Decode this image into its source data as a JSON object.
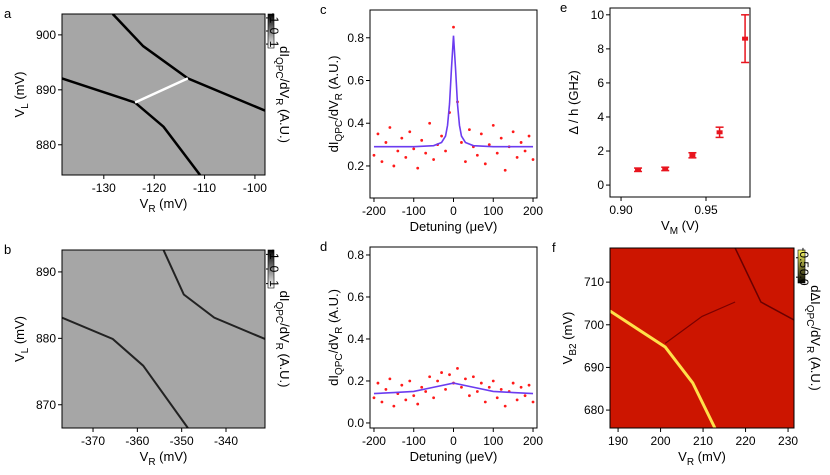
{
  "chart_data": [
    {
      "type": "heatmap",
      "panel_label": "a",
      "background": "#a6a6a6",
      "xlabel": [
        "V",
        "R",
        " (mV)"
      ],
      "ylabel": [
        "V",
        "L",
        " (mV)"
      ],
      "xlim": [
        -138.3,
        -98.0
      ],
      "xticks": [
        -130,
        -120,
        -110,
        -100
      ],
      "ylim": [
        874.5,
        903.8
      ],
      "yticks": [
        880,
        890,
        900
      ],
      "cbar_lim": [
        -1.3,
        1.3
      ],
      "cbar_ticks": [
        -1,
        0,
        1
      ],
      "cbar_colors": [
        "#000000",
        "#ffffff"
      ],
      "cbar_label": [
        "dI",
        "QPC",
        "/dV",
        "R",
        " (A.U.)"
      ]
    },
    {
      "type": "scatter",
      "panel_label": "c",
      "xlabel": [
        "Detuning (μeV)"
      ],
      "ylabel": [
        "dI",
        "QPC",
        "/dV",
        "R",
        " (A.U.)"
      ],
      "xlim": [
        -210,
        210
      ],
      "xticks": [
        -200,
        -100,
        0,
        100,
        200
      ],
      "ylim": [
        0.05,
        0.93
      ],
      "yticks": [
        0.2,
        0.4,
        0.6,
        0.8
      ],
      "series": [
        {
          "style": "markers",
          "color": "#ff1a1a",
          "x": [
            -200,
            -190,
            -180,
            -170,
            -160,
            -150,
            -140,
            -130,
            -120,
            -110,
            -100,
            -90,
            -80,
            -70,
            -60,
            -50,
            -40,
            -30,
            -20,
            -10,
            0,
            10,
            20,
            30,
            40,
            50,
            60,
            70,
            80,
            90,
            100,
            110,
            120,
            130,
            140,
            150,
            160,
            170,
            180,
            190,
            200
          ],
          "values": [
            0.25,
            0.35,
            0.22,
            0.31,
            0.38,
            0.2,
            0.27,
            0.33,
            0.24,
            0.36,
            0.28,
            0.19,
            0.32,
            0.26,
            0.4,
            0.23,
            0.3,
            0.34,
            0.27,
            0.45,
            0.85,
            0.5,
            0.31,
            0.22,
            0.37,
            0.29,
            0.25,
            0.35,
            0.21,
            0.3,
            0.39,
            0.26,
            0.33,
            0.18,
            0.29,
            0.36,
            0.24,
            0.31,
            0.27,
            0.34,
            0.23
          ]
        },
        {
          "style": "line",
          "color": "#6b3cf0",
          "x": [
            -200,
            -100,
            -50,
            -30,
            -20,
            -15,
            -10,
            -5,
            0,
            5,
            10,
            15,
            20,
            30,
            50,
            100,
            200
          ],
          "values": [
            0.29,
            0.29,
            0.295,
            0.31,
            0.34,
            0.39,
            0.49,
            0.66,
            0.81,
            0.66,
            0.49,
            0.39,
            0.34,
            0.31,
            0.295,
            0.29,
            0.29
          ]
        }
      ]
    },
    {
      "type": "errorbar",
      "panel_label": "e",
      "xlabel": [
        "V",
        "M",
        " (V)"
      ],
      "ylabel": [
        "Δ / h (GHz)"
      ],
      "xlim": [
        0.8935,
        0.9759
      ],
      "xticks": [
        {
          "value": 0.9,
          "label": "0.90"
        },
        0.95
      ],
      "ylim": [
        -0.7,
        10.4
      ],
      "yticks": [
        0,
        2,
        4,
        6,
        8,
        10
      ],
      "color": "#e8141e",
      "x": [
        0.91,
        0.926,
        0.942,
        0.958,
        0.973
      ],
      "values": [
        0.9,
        0.95,
        1.75,
        3.1,
        8.6
      ],
      "errors": [
        0.1,
        0.1,
        0.15,
        0.3,
        1.4
      ]
    },
    {
      "type": "heatmap",
      "panel_label": "b",
      "background": "#a6a6a6",
      "xlabel": [
        "V",
        "R",
        " (mV)"
      ],
      "ylabel": [
        "V",
        "L",
        " (mV)"
      ],
      "xlim": [
        -377,
        -331.2
      ],
      "xticks": [
        -370,
        -360,
        -350,
        -340
      ],
      "ylim": [
        866.5,
        893.3
      ],
      "yticks": [
        870,
        880,
        890
      ],
      "cbar_lim": [
        -1.3,
        1.3
      ],
      "cbar_ticks": [
        -1,
        0,
        1
      ],
      "cbar_colors": [
        "#000000",
        "#ffffff"
      ],
      "cbar_label": [
        "dI",
        "QPC",
        "/dV",
        "R",
        " (A.U.)"
      ]
    },
    {
      "type": "scatter",
      "panel_label": "d",
      "xlabel": [
        "Detuning (μeV)"
      ],
      "ylabel": [
        "dI",
        "QPC",
        "/dV",
        "R",
        " (A.U.)"
      ],
      "xlim": [
        -210,
        210
      ],
      "xticks": [
        -200,
        -100,
        0,
        100,
        200
      ],
      "ylim": [
        -0.024,
        0.838
      ],
      "yticks": [
        {
          "value": 0,
          "label": "0.0"
        },
        0.2,
        0.4,
        0.6,
        0.8
      ],
      "series": [
        {
          "style": "markers",
          "color": "#ff1a1a",
          "x": [
            -200,
            -190,
            -180,
            -170,
            -160,
            -150,
            -140,
            -130,
            -120,
            -110,
            -100,
            -90,
            -80,
            -70,
            -60,
            -50,
            -40,
            -30,
            -20,
            -10,
            0,
            10,
            20,
            30,
            40,
            50,
            60,
            70,
            80,
            90,
            100,
            110,
            120,
            130,
            140,
            150,
            160,
            170,
            180,
            190,
            200
          ],
          "values": [
            0.12,
            0.19,
            0.1,
            0.16,
            0.21,
            0.08,
            0.14,
            0.18,
            0.11,
            0.2,
            0.13,
            0.09,
            0.17,
            0.15,
            0.22,
            0.12,
            0.2,
            0.24,
            0.16,
            0.23,
            0.19,
            0.26,
            0.17,
            0.21,
            0.13,
            0.22,
            0.15,
            0.19,
            0.1,
            0.17,
            0.2,
            0.12,
            0.16,
            0.08,
            0.15,
            0.19,
            0.11,
            0.17,
            0.13,
            0.18,
            0.1
          ]
        },
        {
          "style": "line",
          "color": "#6b3cf0",
          "x": [
            -200,
            -150,
            -100,
            -50,
            0,
            50,
            100,
            150,
            200
          ],
          "values": [
            0.14,
            0.145,
            0.15,
            0.17,
            0.19,
            0.17,
            0.15,
            0.145,
            0.14
          ]
        }
      ]
    },
    {
      "type": "heatmap",
      "panel_label": "f",
      "background": "#cc1500",
      "xlabel": [
        "V",
        "R",
        " (mV)"
      ],
      "ylabel": [
        "V",
        "B2",
        " (mV)"
      ],
      "xlim": [
        188.1,
        231.4
      ],
      "xticks": [
        190,
        200,
        210,
        220,
        230
      ],
      "ylim": [
        675.8,
        718
      ],
      "yticks": [
        680,
        690,
        700,
        710
      ],
      "cbar_lim": [
        -0.7,
        0.15
      ],
      "cbar_ticks": [
        -0.5,
        {
          "value": 0,
          "label": "0.0"
        }
      ],
      "cbar_colors": [
        "#ffff66",
        "#000000"
      ],
      "cbar_label": [
        "dΔI",
        "QPC",
        "/dV",
        "R",
        " (A.U.)"
      ]
    }
  ]
}
